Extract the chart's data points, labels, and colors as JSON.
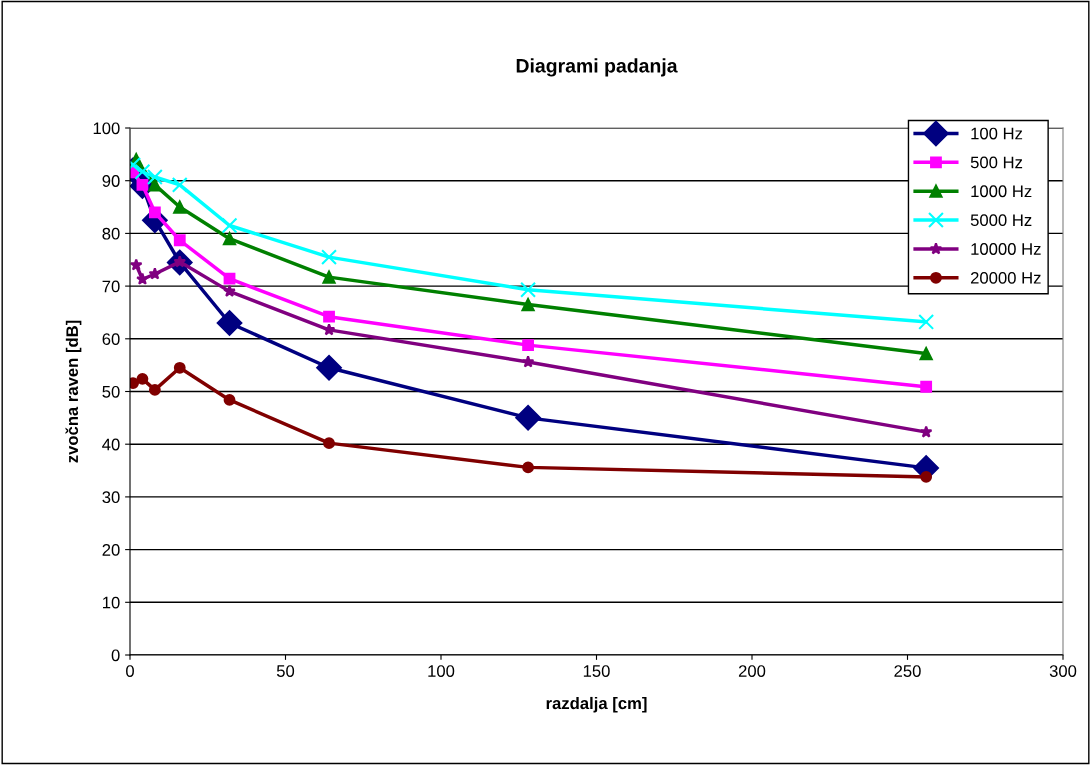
{
  "chart_data": {
    "type": "line",
    "title": "Diagrami padanja",
    "xlabel": "razdalja [cm]",
    "ylabel": "zvočna raven [dB]",
    "xlim": [
      0,
      300
    ],
    "xticks": [
      0,
      50,
      100,
      150,
      200,
      250,
      300
    ],
    "ylim": [
      0,
      100
    ],
    "yticks": [
      0,
      10,
      20,
      30,
      40,
      50,
      60,
      70,
      80,
      90,
      100
    ],
    "grid": "y",
    "legend": "top right",
    "series": [
      {
        "name": "100 Hz",
        "color": "#000080",
        "marker": "diamond",
        "x": [
          1,
          4,
          8,
          16,
          32,
          64,
          128,
          256
        ],
        "values": [
          92,
          89,
          82.5,
          74.5,
          63,
          54.5,
          45,
          35.5
        ]
      },
      {
        "name": "500 Hz",
        "color": "#ff00ff",
        "marker": "square",
        "x": [
          1,
          4,
          8,
          16,
          32,
          64,
          128,
          256
        ],
        "values": [
          91.6,
          89.2,
          84,
          78.7,
          71.4,
          64.2,
          58.8,
          50.9
        ]
      },
      {
        "name": "1000 Hz",
        "color": "#008000",
        "marker": "triangle",
        "x": [
          2,
          8,
          16,
          32,
          64,
          128,
          256
        ],
        "values": [
          94,
          89.2,
          85,
          79,
          71.7,
          66.5,
          57.2
        ]
      },
      {
        "name": "5000 Hz",
        "color": "#00ffff",
        "marker": "cross",
        "x": [
          1,
          4,
          8,
          16,
          32,
          64,
          128,
          256
        ],
        "values": [
          93,
          91.7,
          90.7,
          89.2,
          81.5,
          75.5,
          69.3,
          63.2
        ]
      },
      {
        "name": "10000 Hz",
        "color": "#800080",
        "marker": "star",
        "x": [
          2,
          4,
          8,
          16,
          32,
          64,
          128,
          256
        ],
        "values": [
          74,
          71.3,
          72.3,
          74.6,
          69,
          61.7,
          55.6,
          42.3
        ]
      },
      {
        "name": "20000 Hz",
        "color": "#800000",
        "marker": "circle",
        "x": [
          1,
          4,
          8,
          16,
          32,
          64,
          128,
          256
        ],
        "values": [
          51.6,
          52.4,
          50.3,
          54.5,
          48.4,
          40.2,
          35.6,
          33.8
        ]
      }
    ]
  }
}
